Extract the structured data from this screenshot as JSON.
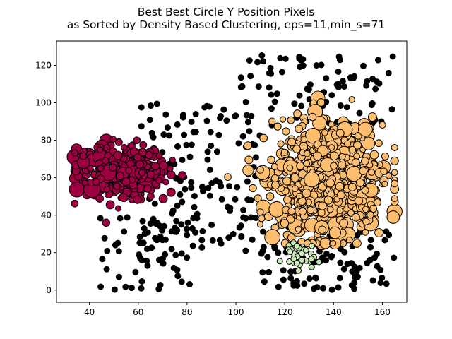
{
  "chart_data": {
    "type": "scatter",
    "title_line1": "Best Best Circle Y Position Pixels",
    "title_line2": "as Sorted by Density Based Clustering, eps=11,min_s=71",
    "xlabel": "",
    "ylabel": "",
    "xlim": [
      26.5,
      170
    ],
    "ylim": [
      -6.5,
      133
    ],
    "xticks": [
      40,
      60,
      80,
      100,
      120,
      140,
      160
    ],
    "yticks": [
      0,
      20,
      40,
      60,
      80,
      100,
      120
    ],
    "grid": false,
    "legend": "none",
    "colors": {
      "noise": "#000000",
      "cluster_red": "#9e0142",
      "cluster_orange": "#fdbf6f",
      "cluster_green": "#c7e9b4"
    },
    "clusters": [
      {
        "id": "noise",
        "color": "#000000",
        "x_range": [
          38,
          165
        ],
        "y_range": [
          0,
          127
        ],
        "count": 380
      },
      {
        "id": "red",
        "color": "#9e0142",
        "center": [
          52,
          64
        ],
        "x_range": [
          34,
          78
        ],
        "y_range": [
          36,
          85
        ],
        "count": 420
      },
      {
        "id": "orange",
        "color": "#fdbf6f",
        "center": [
          138,
          58
        ],
        "x_range": [
          96,
          165
        ],
        "y_range": [
          25,
          118
        ],
        "count": 850
      },
      {
        "id": "green",
        "color": "#c7e9b4",
        "center": [
          125,
          19
        ],
        "x_range": [
          115,
          134
        ],
        "y_range": [
          8,
          30
        ],
        "count": 40
      }
    ]
  }
}
